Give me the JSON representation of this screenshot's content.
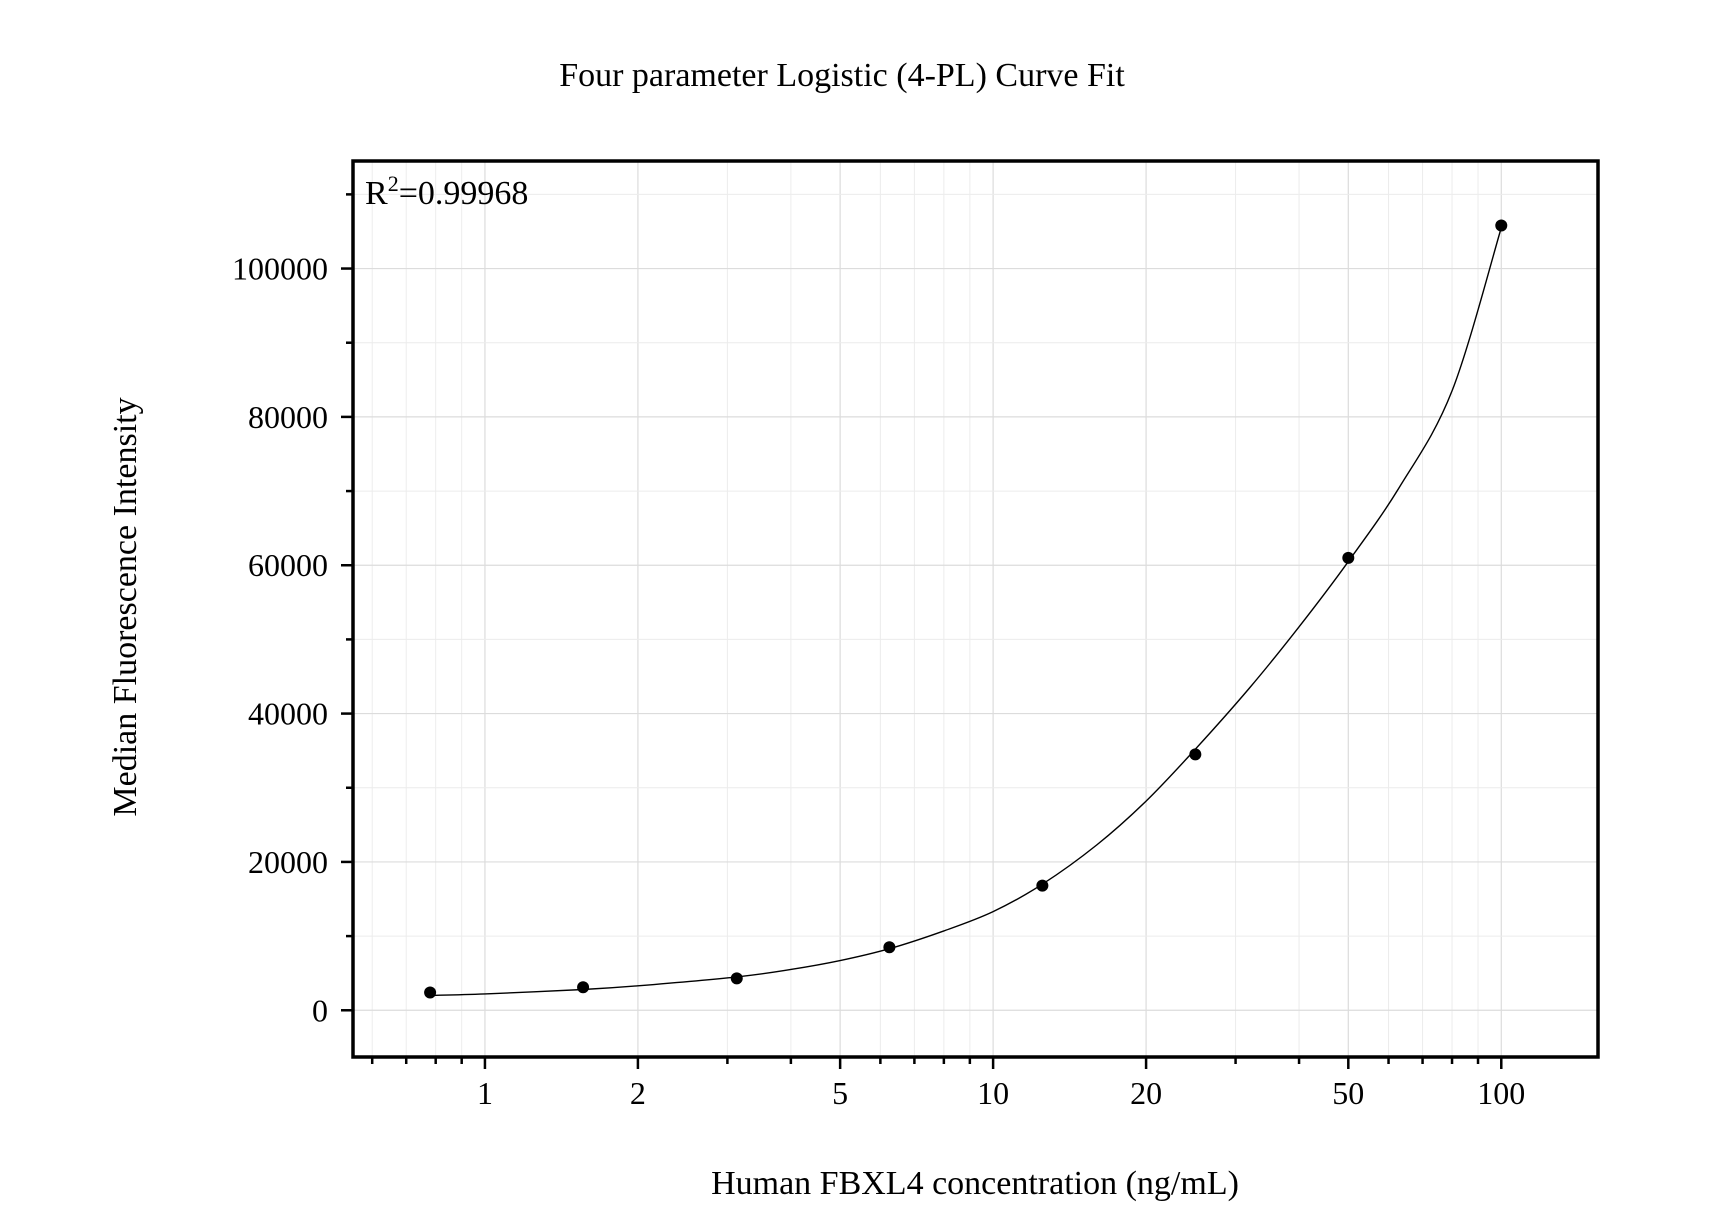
{
  "chart_data": {
    "type": "scatter",
    "title": "Four parameter Logistic (4-PL) Curve Fit",
    "xlabel": "Human FBXL4 concentration (ng/mL)",
    "ylabel": "Median Fluorescence Intensity",
    "x_scale": "log",
    "xlim": [
      0.55,
      155
    ],
    "ylim": [
      -6300,
      114500
    ],
    "x_ticks": [
      1,
      2,
      5,
      10,
      20,
      50,
      100
    ],
    "x_tick_labels": [
      "1",
      "2",
      "5",
      "10",
      "20",
      "50",
      "100"
    ],
    "y_ticks": [
      0,
      20000,
      40000,
      60000,
      80000,
      100000
    ],
    "y_tick_labels": [
      "0",
      "20000",
      "40000",
      "60000",
      "80000",
      "100000"
    ],
    "grid": true,
    "annotation": {
      "base": "R",
      "superscript": "2",
      "text": "=0.99968",
      "position": "top-left"
    },
    "points": {
      "x": [
        0.78,
        1.56,
        3.13,
        6.25,
        12.5,
        25,
        50,
        100
      ],
      "y": [
        2400,
        3100,
        4300,
        8500,
        16800,
        34500,
        61000,
        105800
      ]
    },
    "fit_curve": {
      "model": "4-PL",
      "x": [
        0.78,
        1,
        1.56,
        2,
        3.13,
        4,
        5,
        6.25,
        8,
        10,
        12.5,
        16,
        20,
        25,
        32,
        40,
        50,
        63,
        80,
        100
      ],
      "y": [
        2000,
        2200,
        2800,
        3300,
        4500,
        5500,
        6700,
        8300,
        10700,
        13300,
        17000,
        22300,
        28200,
        35200,
        43500,
        51700,
        60500,
        70500,
        83500,
        105500
      ]
    }
  }
}
